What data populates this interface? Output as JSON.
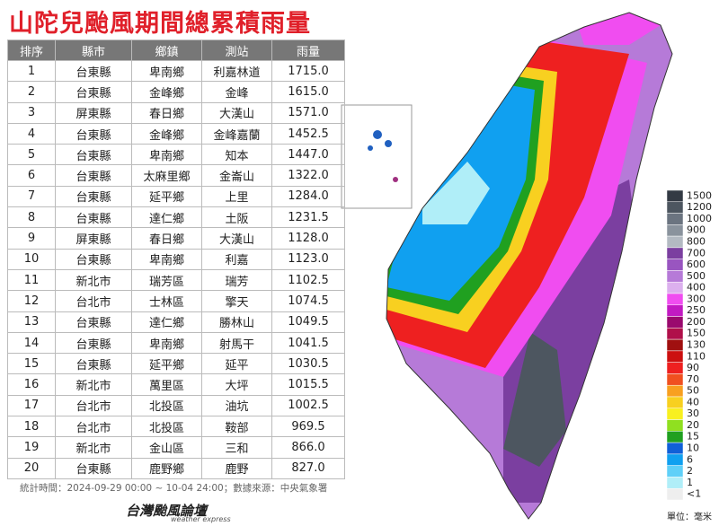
{
  "header": {
    "title": "山陀兒颱風期間總累積雨量"
  },
  "table": {
    "columns": [
      "排序",
      "縣市",
      "鄉鎮",
      "測站",
      "雨量"
    ],
    "rows": [
      [
        "1",
        "台東縣",
        "卑南鄉",
        "利嘉林道",
        "1715.0"
      ],
      [
        "2",
        "台東縣",
        "金峰鄉",
        "金峰",
        "1615.0"
      ],
      [
        "3",
        "屏東縣",
        "春日鄉",
        "大漢山",
        "1571.0"
      ],
      [
        "4",
        "台東縣",
        "金峰鄉",
        "金峰嘉蘭",
        "1452.5"
      ],
      [
        "5",
        "台東縣",
        "卑南鄉",
        "知本",
        "1447.0"
      ],
      [
        "6",
        "台東縣",
        "太麻里鄉",
        "金崙山",
        "1322.0"
      ],
      [
        "7",
        "台東縣",
        "延平鄉",
        "上里",
        "1284.0"
      ],
      [
        "8",
        "台東縣",
        "達仁鄉",
        "土阪",
        "1231.5"
      ],
      [
        "9",
        "屏東縣",
        "春日鄉",
        "大漢山",
        "1128.0"
      ],
      [
        "10",
        "台東縣",
        "卑南鄉",
        "利嘉",
        "1123.0"
      ],
      [
        "11",
        "新北市",
        "瑞芳區",
        "瑞芳",
        "1102.5"
      ],
      [
        "12",
        "台北市",
        "士林區",
        "擎天",
        "1074.5"
      ],
      [
        "13",
        "台東縣",
        "達仁鄉",
        "勝林山",
        "1049.5"
      ],
      [
        "14",
        "台東縣",
        "卑南鄉",
        "射馬干",
        "1041.5"
      ],
      [
        "15",
        "台東縣",
        "延平鄉",
        "延平",
        "1030.5"
      ],
      [
        "16",
        "新北市",
        "萬里區",
        "大坪",
        "1015.5"
      ],
      [
        "17",
        "台北市",
        "北投區",
        "油坑",
        "1002.5"
      ],
      [
        "18",
        "台北市",
        "北投區",
        "鞍部",
        "969.5"
      ],
      [
        "19",
        "新北市",
        "金山區",
        "三和",
        "866.0"
      ],
      [
        "20",
        "台東縣",
        "鹿野鄉",
        "鹿野",
        "827.0"
      ]
    ]
  },
  "footer": {
    "note": "統計時間：2024-09-29 00:00 ~ 10-04 24:00；數據來源：中央氣象署",
    "logo": "台灣颱風論壇",
    "logo_sub": "weather express"
  },
  "legend": {
    "unit": "單位：毫米",
    "items": [
      {
        "label": "1500",
        "color": "#333a44"
      },
      {
        "label": "1200",
        "color": "#4d5660"
      },
      {
        "label": "1000",
        "color": "#6b7480"
      },
      {
        "label": "900",
        "color": "#8a939d"
      },
      {
        "label": "800",
        "color": "#b3bac2"
      },
      {
        "label": "700",
        "color": "#7b3fa0"
      },
      {
        "label": "600",
        "color": "#9955c0"
      },
      {
        "label": "500",
        "color": "#b67ad8"
      },
      {
        "label": "400",
        "color": "#dcb0ee"
      },
      {
        "label": "300",
        "color": "#f04df0"
      },
      {
        "label": "250",
        "color": "#c21ac2"
      },
      {
        "label": "200",
        "color": "#9a0a6e"
      },
      {
        "label": "150",
        "color": "#b0104a"
      },
      {
        "label": "130",
        "color": "#a01010"
      },
      {
        "label": "110",
        "color": "#cc1010"
      },
      {
        "label": "90",
        "color": "#ee2020"
      },
      {
        "label": "70",
        "color": "#f05020"
      },
      {
        "label": "50",
        "color": "#f8a020"
      },
      {
        "label": "40",
        "color": "#f8d020"
      },
      {
        "label": "30",
        "color": "#f8f020"
      },
      {
        "label": "20",
        "color": "#90e020"
      },
      {
        "label": "15",
        "color": "#20a020"
      },
      {
        "label": "10",
        "color": "#1060d8"
      },
      {
        "label": "6",
        "color": "#10a0f0"
      },
      {
        "label": "2",
        "color": "#60d0f8"
      },
      {
        "label": "1",
        "color": "#b0eef8"
      },
      {
        "label": "<1",
        "color": "#eeeeee"
      }
    ]
  }
}
